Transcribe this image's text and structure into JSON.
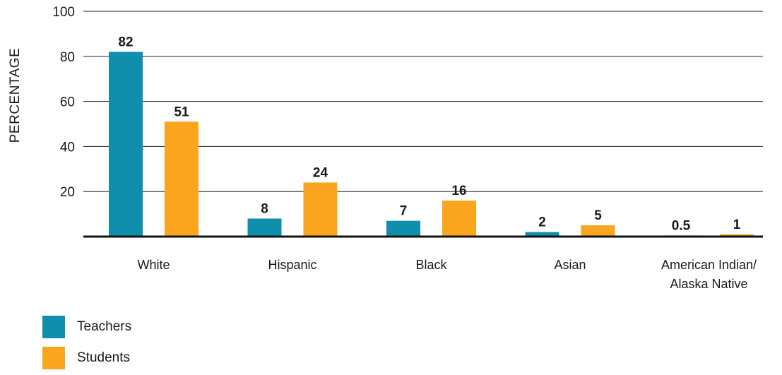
{
  "chart_data": {
    "type": "bar",
    "title": "",
    "xlabel": "",
    "ylabel": "PERCENTAGE",
    "ylim": [
      0,
      100
    ],
    "yticks": [
      20,
      40,
      60,
      80,
      100
    ],
    "grid": true,
    "legend_placement": "bottom-left",
    "categories": [
      [
        "White"
      ],
      [
        "Hispanic"
      ],
      [
        "Black"
      ],
      [
        "Asian"
      ],
      [
        "American Indian/",
        "Alaska Native"
      ]
    ],
    "series": [
      {
        "name": "Teachers",
        "color": "#0f8fab",
        "values": [
          82,
          8,
          7,
          2,
          0.5
        ],
        "labels": [
          "82",
          "8",
          "7",
          "2",
          "0.5"
        ]
      },
      {
        "name": "Students",
        "color": "#f9a51e",
        "values": [
          51,
          24,
          16,
          5,
          1
        ],
        "labels": [
          "51",
          "24",
          "16",
          "5",
          "1"
        ]
      }
    ]
  }
}
